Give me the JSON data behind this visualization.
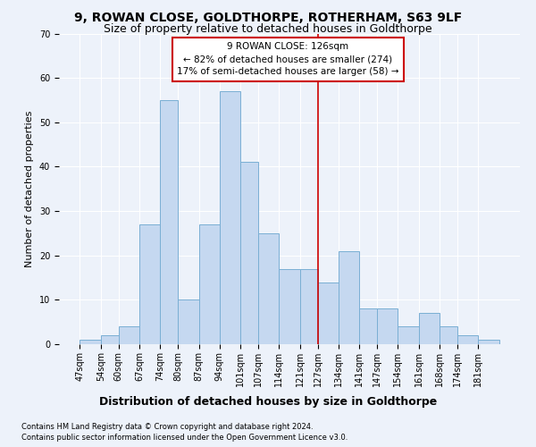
{
  "title1": "9, ROWAN CLOSE, GOLDTHORPE, ROTHERHAM, S63 9LF",
  "title2": "Size of property relative to detached houses in Goldthorpe",
  "xlabel": "Distribution of detached houses by size in Goldthorpe",
  "ylabel": "Number of detached properties",
  "categories": [
    "47sqm",
    "54sqm",
    "60sqm",
    "67sqm",
    "74sqm",
    "80sqm",
    "87sqm",
    "94sqm",
    "101sqm",
    "107sqm",
    "114sqm",
    "121sqm",
    "127sqm",
    "134sqm",
    "141sqm",
    "147sqm",
    "154sqm",
    "161sqm",
    "168sqm",
    "174sqm",
    "181sqm"
  ],
  "values": [
    1,
    2,
    4,
    27,
    55,
    10,
    27,
    57,
    41,
    25,
    17,
    17,
    14,
    21,
    8,
    8,
    4,
    7,
    4,
    2,
    1
  ],
  "bar_color": "#c5d8f0",
  "bar_edge_color": "#7aafd4",
  "vline_color": "#cc0000",
  "annotation_text": "9 ROWAN CLOSE: 126sqm\n← 82% of detached houses are smaller (274)\n17% of semi-detached houses are larger (58) →",
  "annotation_box_color": "#cc0000",
  "bin_edges": [
    47,
    54,
    60,
    67,
    74,
    80,
    87,
    94,
    101,
    107,
    114,
    121,
    127,
    134,
    141,
    147,
    154,
    161,
    168,
    174,
    181,
    188
  ],
  "ylim": [
    0,
    70
  ],
  "yticks": [
    0,
    10,
    20,
    30,
    40,
    50,
    60,
    70
  ],
  "footnote1": "Contains HM Land Registry data © Crown copyright and database right 2024.",
  "footnote2": "Contains public sector information licensed under the Open Government Licence v3.0.",
  "bg_color": "#edf2fa",
  "grid_color": "#ffffff",
  "title1_fontsize": 10,
  "title2_fontsize": 9,
  "xlabel_fontsize": 9,
  "ylabel_fontsize": 8,
  "footnote_fontsize": 6,
  "tick_fontsize": 7,
  "ann_fontsize": 7.5
}
